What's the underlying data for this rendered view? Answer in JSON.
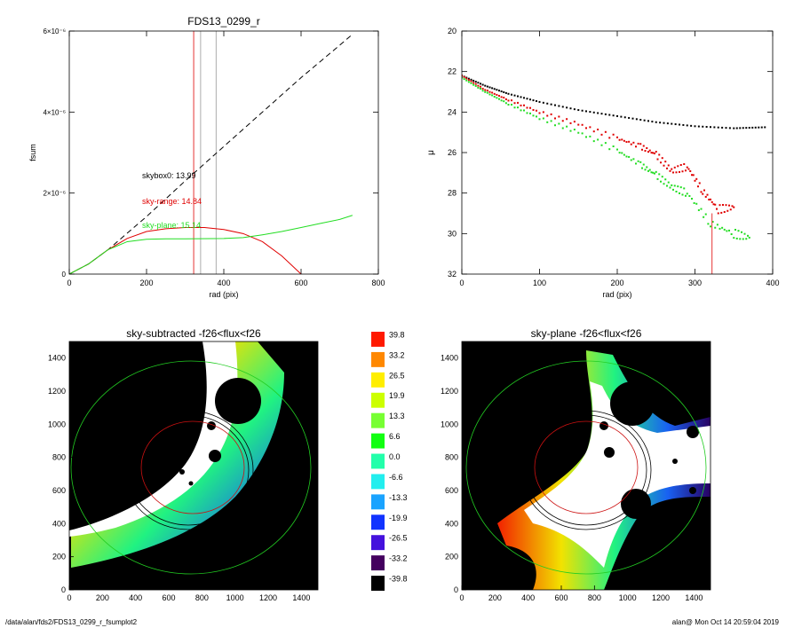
{
  "footer": {
    "path": "/data/alan/fds2/FDS13_0299_r_fsumplot2",
    "user_time": "alan@  Mon Oct 14 20:59:04 2019"
  },
  "colors": {
    "red": "#e00000",
    "green": "#22dd22",
    "black": "#000000",
    "gray": "#999999"
  },
  "chart_data": [
    {
      "id": "fsum",
      "type": "line",
      "title": "FDS13_0299_r",
      "xlabel": "rad (pix)",
      "ylabel": "fsum",
      "xlim": [
        0,
        800
      ],
      "ylim": [
        0,
        6e-06
      ],
      "xticks": [
        "0",
        "200",
        "400",
        "600",
        "800"
      ],
      "yticks": [
        "0",
        "2×10⁻⁶",
        "4×10⁻⁶",
        "6×10⁻⁶"
      ],
      "annotations": [
        {
          "text": "skybox0: 13.99",
          "color": "#000000"
        },
        {
          "text": "sky-range: 14.84",
          "color": "#e00000"
        },
        {
          "text": "sky-plane: 15.14",
          "color": "#22dd22"
        }
      ],
      "vlines": [
        {
          "x": 322,
          "color": "#e00000"
        },
        {
          "x": 340,
          "color": "#999999"
        },
        {
          "x": 380,
          "color": "#999999"
        }
      ],
      "series": [
        {
          "style": "dashed",
          "color": "#000000",
          "x": [
            0,
            50,
            100,
            200,
            300,
            400,
            500,
            600,
            700,
            733
          ],
          "y": [
            0,
            2.5e-07,
            6e-07,
            1.42e-06,
            2.3e-06,
            3.15e-06,
            4e-06,
            4.85e-06,
            5.65e-06,
            5.92e-06
          ]
        },
        {
          "style": "solid",
          "color": "#e00000",
          "x": [
            0,
            50,
            100,
            150,
            200,
            250,
            300,
            350,
            400,
            450,
            500,
            550,
            600
          ],
          "y": [
            0,
            2.5e-07,
            6e-07,
            8.8e-07,
            1.05e-06,
            1.12e-06,
            1.15e-06,
            1.15e-06,
            1.1e-06,
            1e-06,
            8e-07,
            4.5e-07,
            0
          ]
        },
        {
          "style": "solid",
          "color": "#22dd22",
          "x": [
            0,
            50,
            100,
            150,
            200,
            250,
            300,
            400,
            450,
            500,
            550,
            600,
            650,
            700,
            733
          ],
          "y": [
            0,
            2.5e-07,
            6e-07,
            8e-07,
            8.6e-07,
            8.7e-07,
            8.7e-07,
            8.8e-07,
            9e-07,
            9.7e-07,
            1.05e-06,
            1.15e-06,
            1.25e-06,
            1.35e-06,
            1.45e-06
          ]
        }
      ]
    },
    {
      "id": "profile",
      "type": "scatter",
      "xlabel": "rad (pix)",
      "ylabel": "μ",
      "xlim": [
        0,
        400
      ],
      "ylim": [
        32,
        20
      ],
      "xticks": [
        "0",
        "100",
        "200",
        "300",
        "400"
      ],
      "yticks": [
        "20",
        "22",
        "24",
        "26",
        "28",
        "30",
        "32"
      ],
      "series": [
        {
          "color": "#000000",
          "x": [
            0,
            30,
            60,
            100,
            150,
            200,
            250,
            300,
            350,
            390
          ],
          "y": [
            22.2,
            22.7,
            23.1,
            23.5,
            23.9,
            24.2,
            24.5,
            24.7,
            24.8,
            24.75
          ]
        },
        {
          "color": "#e00000",
          "x": [
            0,
            30,
            60,
            100,
            150,
            200,
            230,
            250,
            270,
            290,
            310,
            330,
            350
          ],
          "y": [
            22.2,
            22.9,
            23.4,
            24.0,
            24.6,
            25.3,
            25.7,
            26.1,
            26.9,
            26.7,
            27.9,
            28.8,
            28.7
          ]
        },
        {
          "color": "#22dd22",
          "x": [
            0,
            30,
            60,
            100,
            150,
            200,
            230,
            250,
            270,
            290,
            320,
            350,
            370
          ],
          "y": [
            22.3,
            23.0,
            23.6,
            24.3,
            25.0,
            25.9,
            26.6,
            27.1,
            27.7,
            28.0,
            29.5,
            30.0,
            30.2
          ]
        }
      ]
    },
    {
      "id": "sky-subtracted",
      "type": "heatmap",
      "title": "sky-subtracted -f26<flux<f26",
      "xlim": [
        0,
        1500
      ],
      "ylim": [
        0,
        1500
      ],
      "xticks": [
        "0",
        "200",
        "400",
        "600",
        "800",
        "1000",
        "1200",
        "1400"
      ],
      "yticks": [
        "0",
        "200",
        "400",
        "600",
        "800",
        "1000",
        "1200",
        "1400"
      ]
    },
    {
      "id": "sky-plane",
      "type": "heatmap",
      "title": "sky-plane -f26<flux<f26",
      "xlim": [
        0,
        1500
      ],
      "ylim": [
        0,
        1500
      ],
      "xticks": [
        "0",
        "200",
        "400",
        "600",
        "800",
        "1000",
        "1200",
        "1400"
      ],
      "yticks": [
        "0",
        "200",
        "400",
        "600",
        "800",
        "1000",
        "1200",
        "1400"
      ]
    },
    {
      "id": "colorbar",
      "type": "table",
      "labels": [
        "39.8",
        "33.2",
        "26.5",
        "19.9",
        "13.3",
        "6.6",
        "0.0",
        "-6.6",
        "-13.3",
        "-19.9",
        "-26.5",
        "-33.2",
        "-39.8"
      ],
      "colors": [
        "#ff1a00",
        "#ff8800",
        "#ffee00",
        "#ccff00",
        "#77ff33",
        "#11ff11",
        "#22ffaa",
        "#22eeee",
        "#1aa3ff",
        "#1133ff",
        "#4411dd",
        "#44005f",
        "#000000"
      ]
    }
  ]
}
